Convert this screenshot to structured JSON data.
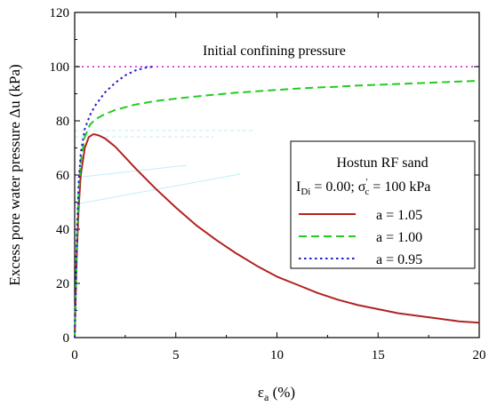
{
  "chart_data": {
    "type": "line",
    "xlabel_main": "ε",
    "xlabel_sub": "a",
    "xlabel_unit": " (%)",
    "ylabel": "Excess pore water pressure Δu (kPa)",
    "xlim": [
      0,
      20
    ],
    "ylim": [
      0,
      120
    ],
    "x_ticks": [
      "0",
      "5",
      "10",
      "15",
      "20"
    ],
    "y_ticks": [
      "0",
      "20",
      "40",
      "60",
      "80",
      "100",
      "120"
    ],
    "grid": false,
    "legend_position": "right",
    "legend_title": "Hostun RF sand",
    "legend_condition": {
      "idi_main": "I",
      "idi_sub": "Di",
      "idi_value": " = 0.00; ",
      "sigma_main": "σ",
      "sigma_sup": "'",
      "sigma_sub": "c",
      "sigma_value": " = 100 kPa"
    },
    "annotation": "Initial confining pressure",
    "confining_pressure_kpa": 100,
    "series": [
      {
        "name": "a = 1.05",
        "color": "#b22222",
        "dash": "solid",
        "x": [
          0,
          0.1,
          0.2,
          0.3,
          0.5,
          0.7,
          0.9,
          1.0,
          1.2,
          1.5,
          2,
          2.5,
          3,
          4,
          5,
          6,
          7,
          8,
          9,
          10,
          11,
          12,
          13,
          14,
          15,
          16,
          17,
          18,
          19,
          20
        ],
        "y": [
          0,
          30,
          48,
          60,
          70,
          74,
          75,
          75,
          74.6,
          73.5,
          70.5,
          66.5,
          62.5,
          55,
          48,
          41.5,
          36,
          31,
          26.5,
          22.5,
          19.5,
          16.5,
          14,
          12,
          10.5,
          9,
          8,
          7,
          6,
          5.5
        ]
      },
      {
        "name": "a = 1.00",
        "color": "#22cc22",
        "dash": "dashed",
        "x": [
          0,
          0.1,
          0.2,
          0.3,
          0.5,
          0.75,
          1,
          1.5,
          2,
          3,
          4,
          5,
          6,
          7,
          8,
          9,
          10,
          11,
          12,
          13,
          14,
          15,
          16,
          17,
          18,
          19,
          20
        ],
        "y": [
          0,
          33,
          53,
          65,
          74,
          78.5,
          80.5,
          82.5,
          84,
          86,
          87.3,
          88.2,
          89,
          89.7,
          90.4,
          90.9,
          91.4,
          91.9,
          92.3,
          92.6,
          93,
          93.3,
          93.6,
          93.9,
          94.2,
          94.5,
          94.8
        ]
      },
      {
        "name": "a = 0.95",
        "color": "#1e1ec8",
        "dash": "dotted",
        "x": [
          0,
          0.1,
          0.2,
          0.3,
          0.5,
          0.75,
          1,
          1.25,
          1.5,
          2,
          2.5,
          3,
          3.5,
          3.9
        ],
        "y": [
          0,
          36,
          57,
          68,
          77,
          82,
          85.5,
          88,
          90.5,
          94,
          96.8,
          98.6,
          99.6,
          100
        ]
      }
    ]
  }
}
